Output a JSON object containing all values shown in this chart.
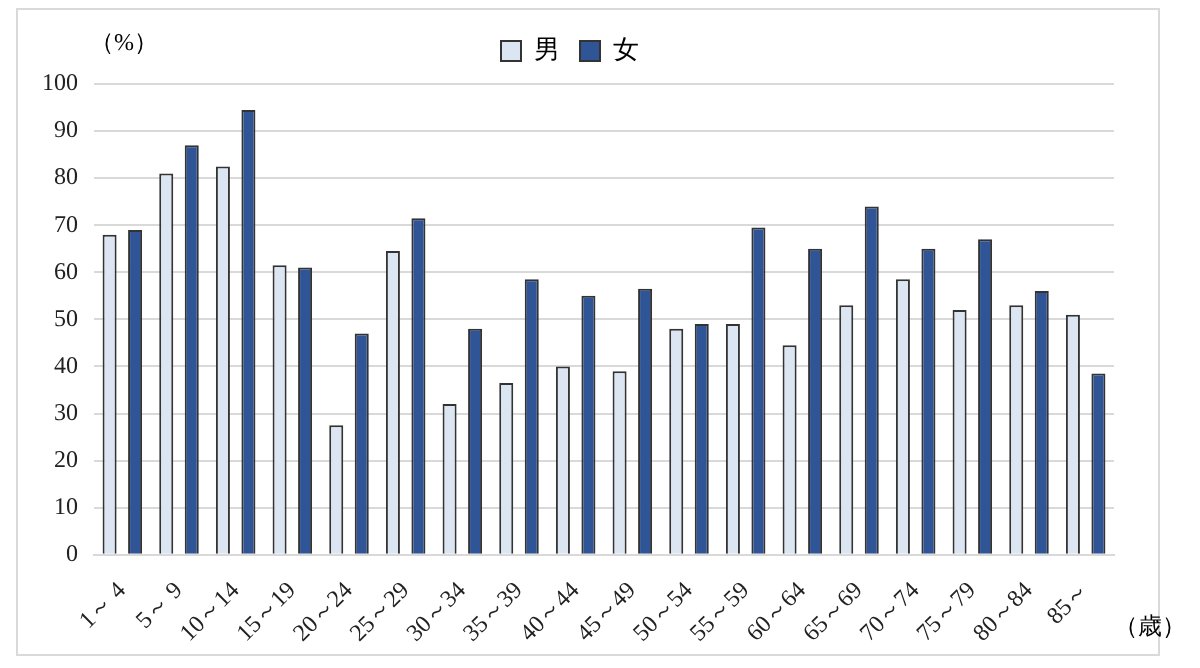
{
  "chart_data": {
    "type": "bar",
    "ylabel": "（%）",
    "xlabel": "（歳）",
    "categories": [
      "1～ 4",
      "5～ 9",
      "10～14",
      "15～19",
      "20～24",
      "25～29",
      "30～34",
      "35～39",
      "40～44",
      "45～49",
      "50～54",
      "55～59",
      "60～64",
      "65～69",
      "70～74",
      "75～79",
      "80～84",
      "85～"
    ],
    "series": [
      {
        "name": "男",
        "color": "#dce6f2",
        "values": [
          68,
          81,
          82.5,
          61.5,
          27.5,
          64.5,
          32,
          36.5,
          40,
          39,
          48,
          49,
          44.5,
          53,
          58.5,
          52,
          53,
          51
        ]
      },
      {
        "name": "女",
        "color": "#2f5597",
        "values": [
          69,
          87,
          94.5,
          61,
          47,
          71.5,
          48,
          58.5,
          55,
          56.5,
          49,
          69.5,
          65,
          74,
          65,
          67,
          56,
          38.5
        ]
      }
    ],
    "ylim": [
      0,
      100
    ],
    "yticks": [
      0,
      10,
      20,
      30,
      40,
      50,
      60,
      70,
      80,
      90,
      100
    ],
    "grid": "y",
    "legend": "top"
  }
}
